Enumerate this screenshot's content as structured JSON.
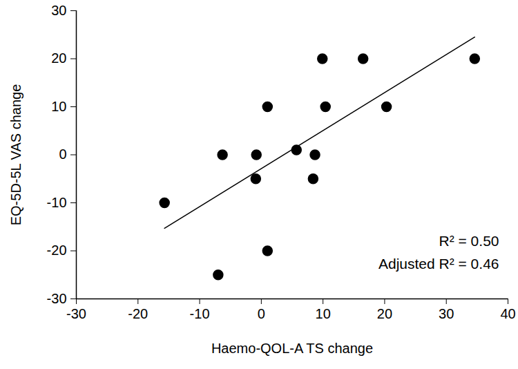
{
  "chart_data": {
    "type": "scatter",
    "x_label": "Haemo-QOL-A TS change",
    "y_label": "EQ-5D-5L VAS change",
    "x": [
      -15.7,
      -6.3,
      -7,
      -0.8,
      -0.9,
      1,
      1,
      5.7,
      8.7,
      8.4,
      9.9,
      10.4,
      16.5,
      20.3,
      34.6
    ],
    "values": [
      -10,
      0,
      -25,
      0,
      -5,
      10,
      -20,
      1,
      0,
      -5,
      20,
      10,
      20,
      10,
      20
    ],
    "color": "#000000",
    "marker": "circle",
    "trend_line": {
      "x": [
        -15.7,
        34.6
      ],
      "y": [
        -15.3,
        24.5
      ]
    },
    "annotations": [
      "R² = 0.50",
      "Adjusted R² = 0.46"
    ],
    "xlim": [
      -30,
      40
    ],
    "xticks": [
      -30,
      -20,
      -10,
      0,
      10,
      20,
      30,
      40
    ],
    "ylim": [
      -30,
      30
    ],
    "yticks": [
      -30,
      -20,
      -10,
      0,
      10,
      20,
      30
    ],
    "grid": false
  }
}
